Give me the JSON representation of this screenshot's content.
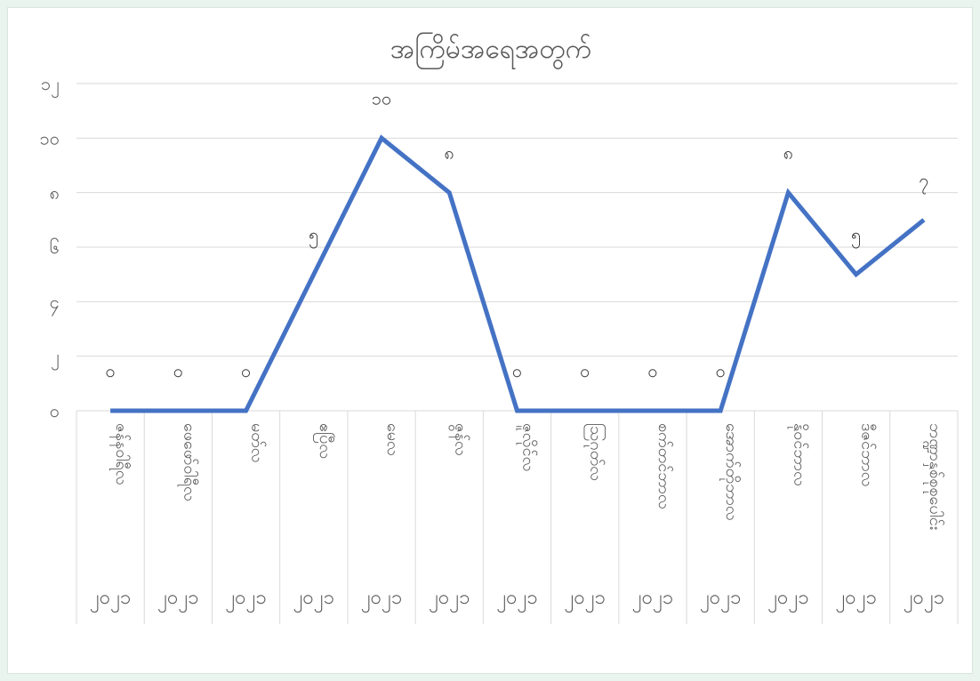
{
  "chart_data": {
    "type": "line",
    "title": "အကြိမ်အရေအတွက်",
    "xlabel": "",
    "ylabel": "",
    "ylim": [
      0,
      12
    ],
    "yticks": [
      "၀",
      "၂",
      "၄",
      "၆",
      "၈",
      "၁၀",
      "၁၂"
    ],
    "categories": [
      {
        "month": "ဇန်နဝါရီလ",
        "year": "၂၀၂၁"
      },
      {
        "month": "ဖေဖော်ဝါရီလ",
        "year": "၂၀၂၁"
      },
      {
        "month": "မတ်လ",
        "year": "၂၀၂၁"
      },
      {
        "month": "ဧပြီလ",
        "year": "၂၀၂၁"
      },
      {
        "month": "မေလ",
        "year": "၂၀၂၁"
      },
      {
        "month": "ဇွန်လ",
        "year": "၂၀၂၁"
      },
      {
        "month": "ဇူလိုင်လ",
        "year": "၂၀၂၁"
      },
      {
        "month": "ဩဂုတ်လ",
        "year": "၂၀၂၁"
      },
      {
        "month": "စက်တင်ဘာလ",
        "year": "၂၀၂၁"
      },
      {
        "month": "အောက်တိုဘာလ",
        "year": "၂၀၂၁"
      },
      {
        "month": "နိုဝင်ဘာလ",
        "year": "၂၀၂၁"
      },
      {
        "month": "ဒီဇင်ဘာလ",
        "year": "၂၀၂၁"
      },
      {
        "month": "ဘဏ္ဍာနှစ်စုစုပေါင်း",
        "year": "၂၀၂၁"
      }
    ],
    "series": [
      {
        "values": [
          0,
          0,
          0,
          5,
          10,
          8,
          0,
          0,
          0,
          0,
          8,
          5,
          7
        ],
        "data_labels": [
          "၀",
          "၀",
          "၀",
          "၅",
          "၁၀",
          "၈",
          "၀",
          "၀",
          "၀",
          "၀",
          "၈",
          "၅",
          "၇"
        ],
        "color": "#4472c4"
      }
    ],
    "grid": true,
    "legend": "none"
  }
}
